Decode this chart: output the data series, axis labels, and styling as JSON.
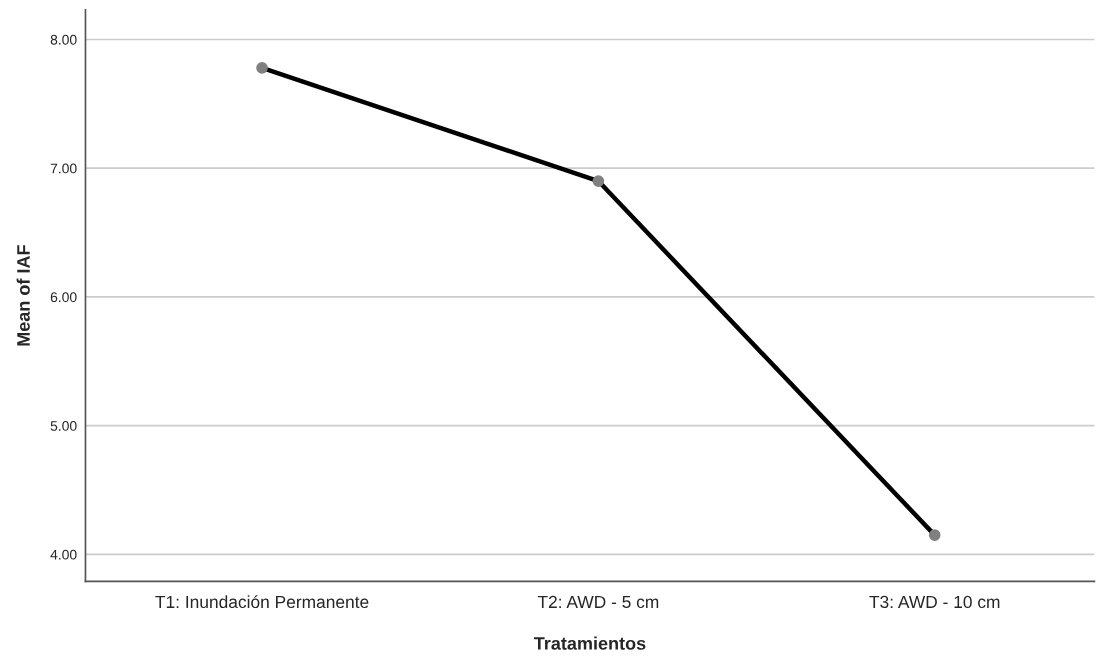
{
  "chart_data": {
    "type": "line",
    "xlabel": "Tratamientos",
    "ylabel": "Mean of IAF",
    "categories": [
      "T1: Inundación Permanente",
      "T2: AWD - 5 cm",
      "T3: AWD - 10 cm"
    ],
    "series": [
      {
        "color": "#000000",
        "values": [
          7.78,
          6.9,
          4.15
        ]
      }
    ],
    "ylim": [
      3.79,
      8.23
    ],
    "yticks": [
      {
        "value": 4,
        "label": "4.00"
      },
      {
        "value": 5,
        "label": "5.00"
      },
      {
        "value": 6,
        "label": "6.00"
      },
      {
        "value": 7,
        "label": "7.00"
      },
      {
        "value": 8,
        "label": "8.00"
      }
    ],
    "grid": "y",
    "marker": "circle",
    "line_style": "solid"
  }
}
